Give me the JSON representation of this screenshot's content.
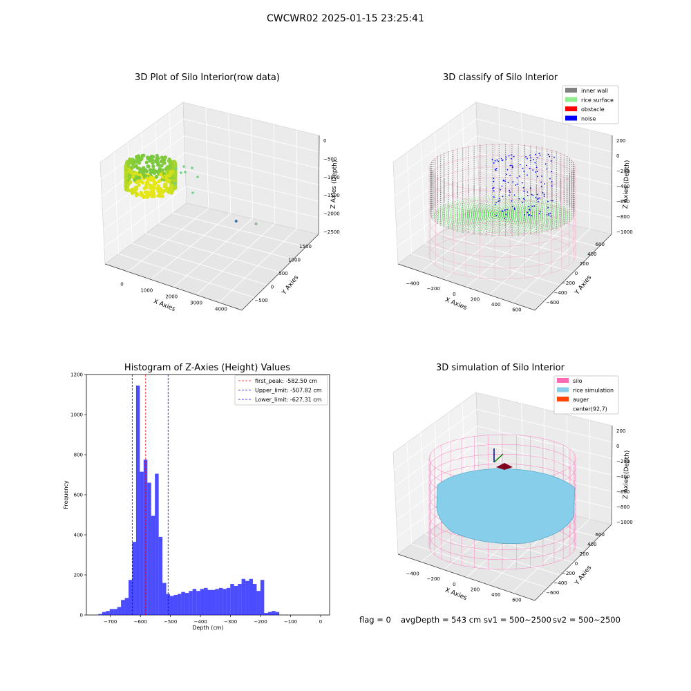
{
  "suptitle": "CWCWR02 2025-01-15 23:25:41",
  "status": {
    "flag": "flag = 0",
    "avg_depth": "avgDepth = 543 cm",
    "sv1": "sv1 = 500~2500",
    "sv2": "sv2 = 500~2500"
  },
  "chart_data": [
    {
      "type": "scatter",
      "title": "3D Plot of Silo Interior(row data)",
      "xlabel": "X Axies",
      "ylabel": "Y Axies",
      "zlabel": "Z Axies (Depth)",
      "x_ticks": [
        "0",
        "1000",
        "2000",
        "3000",
        "4000"
      ],
      "y_ticks": [
        "−500",
        "0",
        "500",
        "1000",
        "1500"
      ],
      "z_ticks": [
        "0",
        "−500",
        "−1000",
        "−1500",
        "−2000",
        "−2500"
      ],
      "outliers": [
        {
          "x": 3400,
          "y": 1500,
          "z": -2000
        },
        {
          "x": 2900,
          "y": 400,
          "z": -2500
        }
      ]
    },
    {
      "type": "scatter",
      "title": "3D classify of Silo Interior",
      "xlabel": "X Axies",
      "ylabel": "Y Axies",
      "zlabel": "Z Axies (Depth)",
      "x_ticks": [
        "−400",
        "−200",
        "0",
        "200",
        "400",
        "600"
      ],
      "y_ticks": [
        "−600",
        "−400",
        "−200",
        "0",
        "200",
        "400",
        "600"
      ],
      "z_ticks": [
        "200",
        "0",
        "−200",
        "−400",
        "−600",
        "−800",
        "−1000"
      ],
      "legend": [
        {
          "label": "inner wall",
          "color": "#808080"
        },
        {
          "label": "rice surface",
          "color": "#90ee90"
        },
        {
          "label": "obstacle",
          "color": "#ff0000"
        },
        {
          "label": "noise",
          "color": "#0000ff"
        }
      ]
    },
    {
      "type": "bar",
      "title": "Histogram of Z-Axies (Height) Values",
      "xlabel": "Depth (cm)",
      "ylabel": "Frequency",
      "xlim": [
        -780,
        30
      ],
      "ylim": [
        0,
        1200
      ],
      "x_ticks": [
        -700,
        -600,
        -500,
        -400,
        -300,
        -200,
        -100,
        0
      ],
      "y_ticks": [
        0,
        200,
        400,
        600,
        800,
        1000,
        1200
      ],
      "bin_width": 12.55,
      "bin_start": -740,
      "values": [
        5,
        15,
        20,
        30,
        30,
        40,
        75,
        85,
        175,
        365,
        1145,
        715,
        775,
        660,
        495,
        705,
        390,
        160,
        105,
        95,
        100,
        105,
        115,
        110,
        120,
        130,
        120,
        130,
        135,
        125,
        125,
        130,
        135,
        130,
        135,
        155,
        145,
        155,
        180,
        170,
        180,
        155,
        120,
        175,
        10,
        15,
        20,
        15
      ],
      "bar_color": "#0000ff",
      "lines": [
        {
          "label": "first_peak: -582.50 cm",
          "x": -582.5,
          "color": "#ff0000"
        },
        {
          "label": "Upper_limit: -507.82 cm",
          "x": -507.82,
          "color": "#0000ff"
        },
        {
          "label": "Lower_limit: -627.31 cm",
          "x": -627.31,
          "color": "#0000ff"
        }
      ]
    },
    {
      "type": "area",
      "title": "3D simulation of Silo Interior",
      "xlabel": "X Axies",
      "ylabel": "Y Axies",
      "zlabel": "Z Axies (Depth)",
      "x_ticks": [
        "−400",
        "−200",
        "0",
        "200",
        "400",
        "600"
      ],
      "y_ticks": [
        "−600",
        "−400",
        "−200",
        "0",
        "200",
        "400",
        "600"
      ],
      "z_ticks": [
        "200",
        "0",
        "−200",
        "−400",
        "−600",
        "−800",
        "−1000"
      ],
      "legend": [
        {
          "label": "silo",
          "color": "#ff69b4"
        },
        {
          "label": "rice simulation",
          "color": "#87ceeb"
        },
        {
          "label": "auger",
          "color": "#ff4500"
        },
        {
          "label": "center(92,7)",
          "color": "#ffffff"
        }
      ]
    }
  ]
}
